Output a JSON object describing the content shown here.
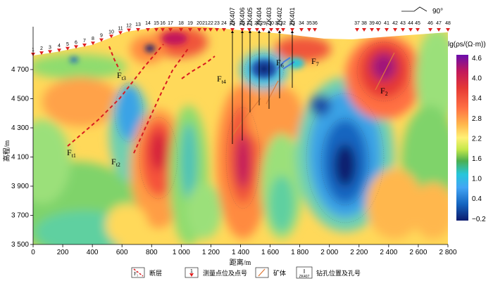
{
  "x_axis": {
    "title": "距离/m",
    "ticks": [
      "0",
      "200",
      "400",
      "600",
      "800",
      "1 000",
      "1 200",
      "1 400",
      "1 600",
      "1 800",
      "2 000",
      "2 200",
      "2 400",
      "2 600",
      "2 800"
    ]
  },
  "y_axis": {
    "title": "高程/m",
    "ticks": [
      "3 500",
      "3 700",
      "3 900",
      "4 100",
      "4 300",
      "4 500",
      "4 700"
    ]
  },
  "colorbar": {
    "title": "lg(ρs/(Ω·m))",
    "labels": [
      "4.6",
      "4.0",
      "3.4",
      "2.8",
      "2.2",
      "1.6",
      "1.0",
      "0.4",
      "−0.2"
    ],
    "colors": [
      "#6a0dad",
      "#c2185b",
      "#e53935",
      "#ff7043",
      "#ffb74d",
      "#fff176",
      "#c5e84a",
      "#4caf50",
      "#26c6da",
      "#42a5f5",
      "#1565c0",
      "#0d1b6e"
    ]
  },
  "north_arrow": "90°",
  "stations": [
    "1",
    "2",
    "3",
    "4",
    "5",
    "6",
    "7",
    "8",
    "9",
    "10",
    "11",
    "12",
    "13",
    "14",
    "15",
    "16",
    "17",
    "18",
    "19",
    "20",
    "21",
    "22",
    "23",
    "24",
    "25",
    "26",
    "27",
    "28",
    "29",
    "30",
    "31",
    "32",
    "33",
    "34",
    "35",
    "36",
    "37",
    "38",
    "39",
    "40",
    "41",
    "42",
    "43",
    "44",
    "45",
    "46",
    "47",
    "48"
  ],
  "boreholes": [
    "ZK407",
    "ZK406",
    "ZK405",
    "ZK404",
    "ZK403",
    "ZK402",
    "ZK401"
  ],
  "faults": {
    "t1": {
      "main": "F",
      "sub": "t1"
    },
    "t2": {
      "main": "F",
      "sub": "t2"
    },
    "t3": {
      "main": "F",
      "sub": "t3"
    },
    "t4": {
      "main": "F",
      "sub": "t4"
    },
    "f2": {
      "main": "F",
      "sub": "2"
    },
    "f6": {
      "main": "F",
      "sub": "6"
    },
    "f7": {
      "main": "F",
      "sub": "7"
    }
  },
  "legend": {
    "fault": "断层",
    "fault_icon_text": "F₁",
    "station": "测量点位及点号",
    "station_icon_text": "1",
    "ore": "矿体",
    "borehole": "钻孔位置及孔号",
    "borehole_icon_text": "ZK407"
  }
}
